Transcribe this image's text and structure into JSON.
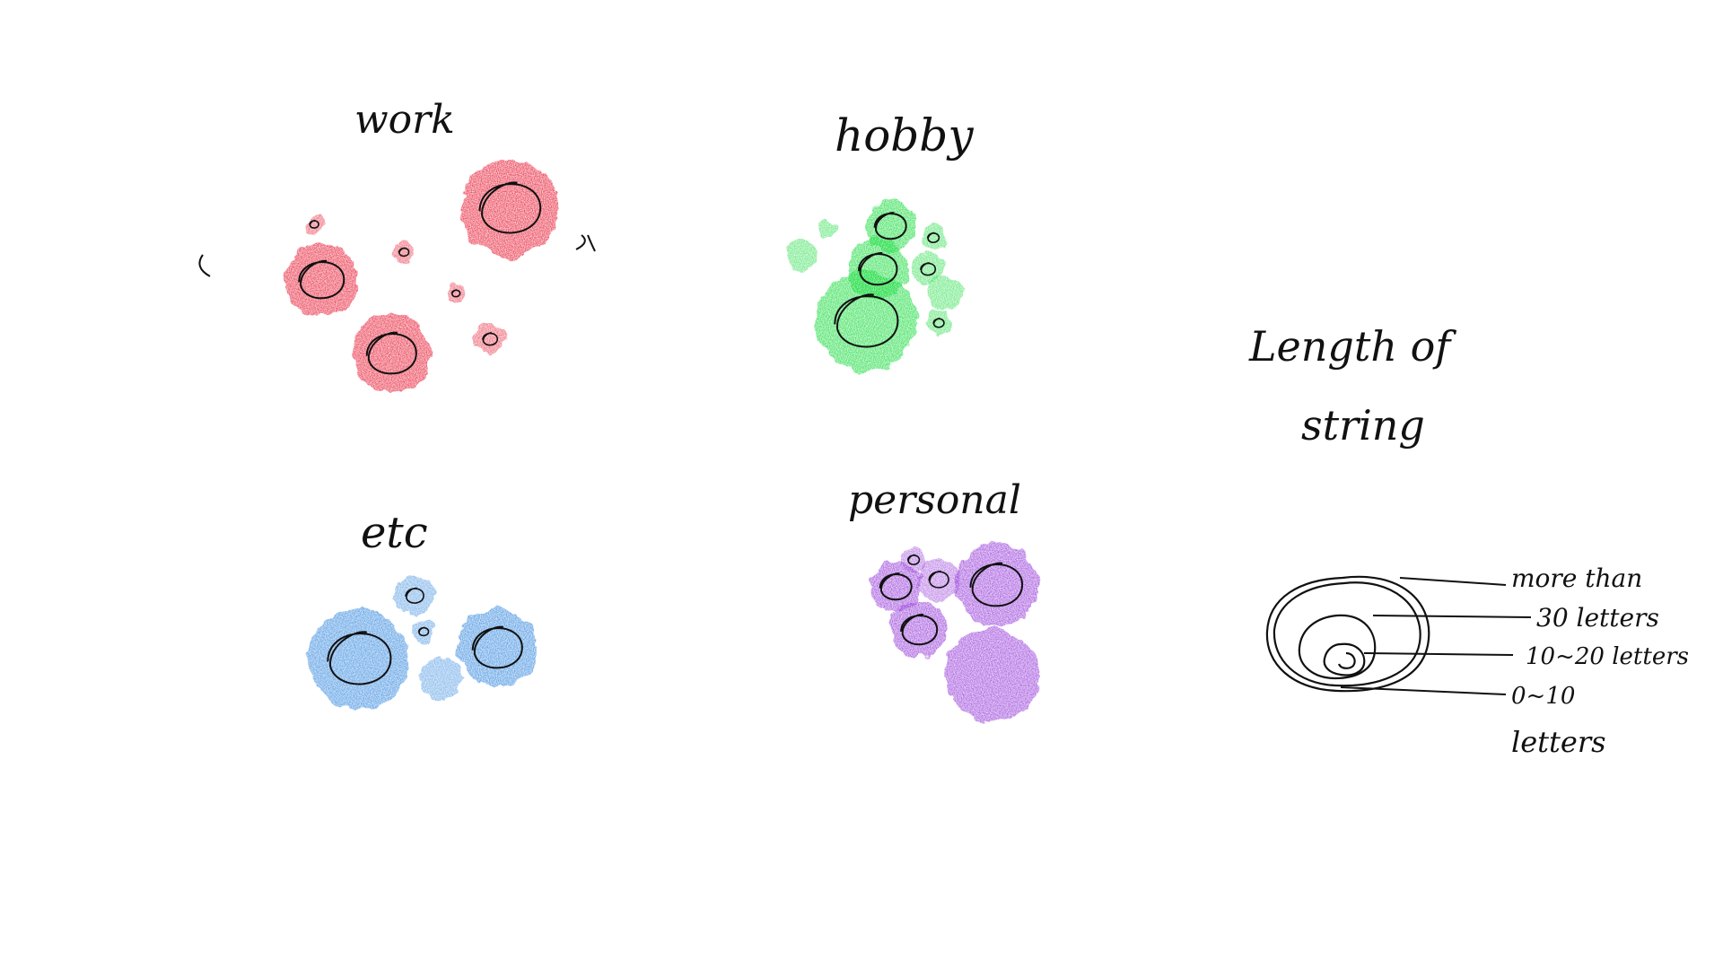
{
  "clusters": [
    {
      "key": "work",
      "label": "work",
      "color": "#e8283c",
      "blobs": [
        {
          "size": "large",
          "outlined": true
        },
        {
          "size": "large",
          "outlined": true
        },
        {
          "size": "large",
          "outlined": true
        },
        {
          "size": "small",
          "outlined": true
        },
        {
          "size": "small",
          "outlined": true
        },
        {
          "size": "small",
          "outlined": true
        },
        {
          "size": "small",
          "outlined": true
        }
      ]
    },
    {
      "key": "hobby",
      "label": "hobby",
      "color": "#22dd44",
      "blobs": [
        {
          "size": "large",
          "outlined": true
        },
        {
          "size": "medium",
          "outlined": true
        },
        {
          "size": "medium",
          "outlined": true
        },
        {
          "size": "small",
          "outlined": true
        },
        {
          "size": "small",
          "outlined": true
        },
        {
          "size": "small",
          "outlined": false
        },
        {
          "size": "small",
          "outlined": true
        },
        {
          "size": "small",
          "outlined": false
        },
        {
          "size": "small",
          "outlined": false
        }
      ]
    },
    {
      "key": "etc",
      "label": "etc",
      "color": "#3f8fe0",
      "blobs": [
        {
          "size": "large",
          "outlined": true
        },
        {
          "size": "large",
          "outlined": true
        },
        {
          "size": "small",
          "outlined": true
        },
        {
          "size": "small",
          "outlined": true
        },
        {
          "size": "small",
          "outlined": false
        }
      ]
    },
    {
      "key": "personal",
      "label": "personal",
      "color": "#9b45db",
      "blobs": [
        {
          "size": "large",
          "outlined": true
        },
        {
          "size": "large",
          "outlined": false
        },
        {
          "size": "medium",
          "outlined": true
        },
        {
          "size": "medium",
          "outlined": true
        },
        {
          "size": "small",
          "outlined": true
        },
        {
          "size": "small",
          "outlined": true
        }
      ]
    }
  ],
  "legend": {
    "title_line1": "Length of",
    "title_line2": "string",
    "items": [
      {
        "label": "more than"
      },
      {
        "label": "30 letters"
      },
      {
        "label": "10~20 letters"
      },
      {
        "label": "0~10"
      },
      {
        "label": "letters"
      }
    ]
  }
}
